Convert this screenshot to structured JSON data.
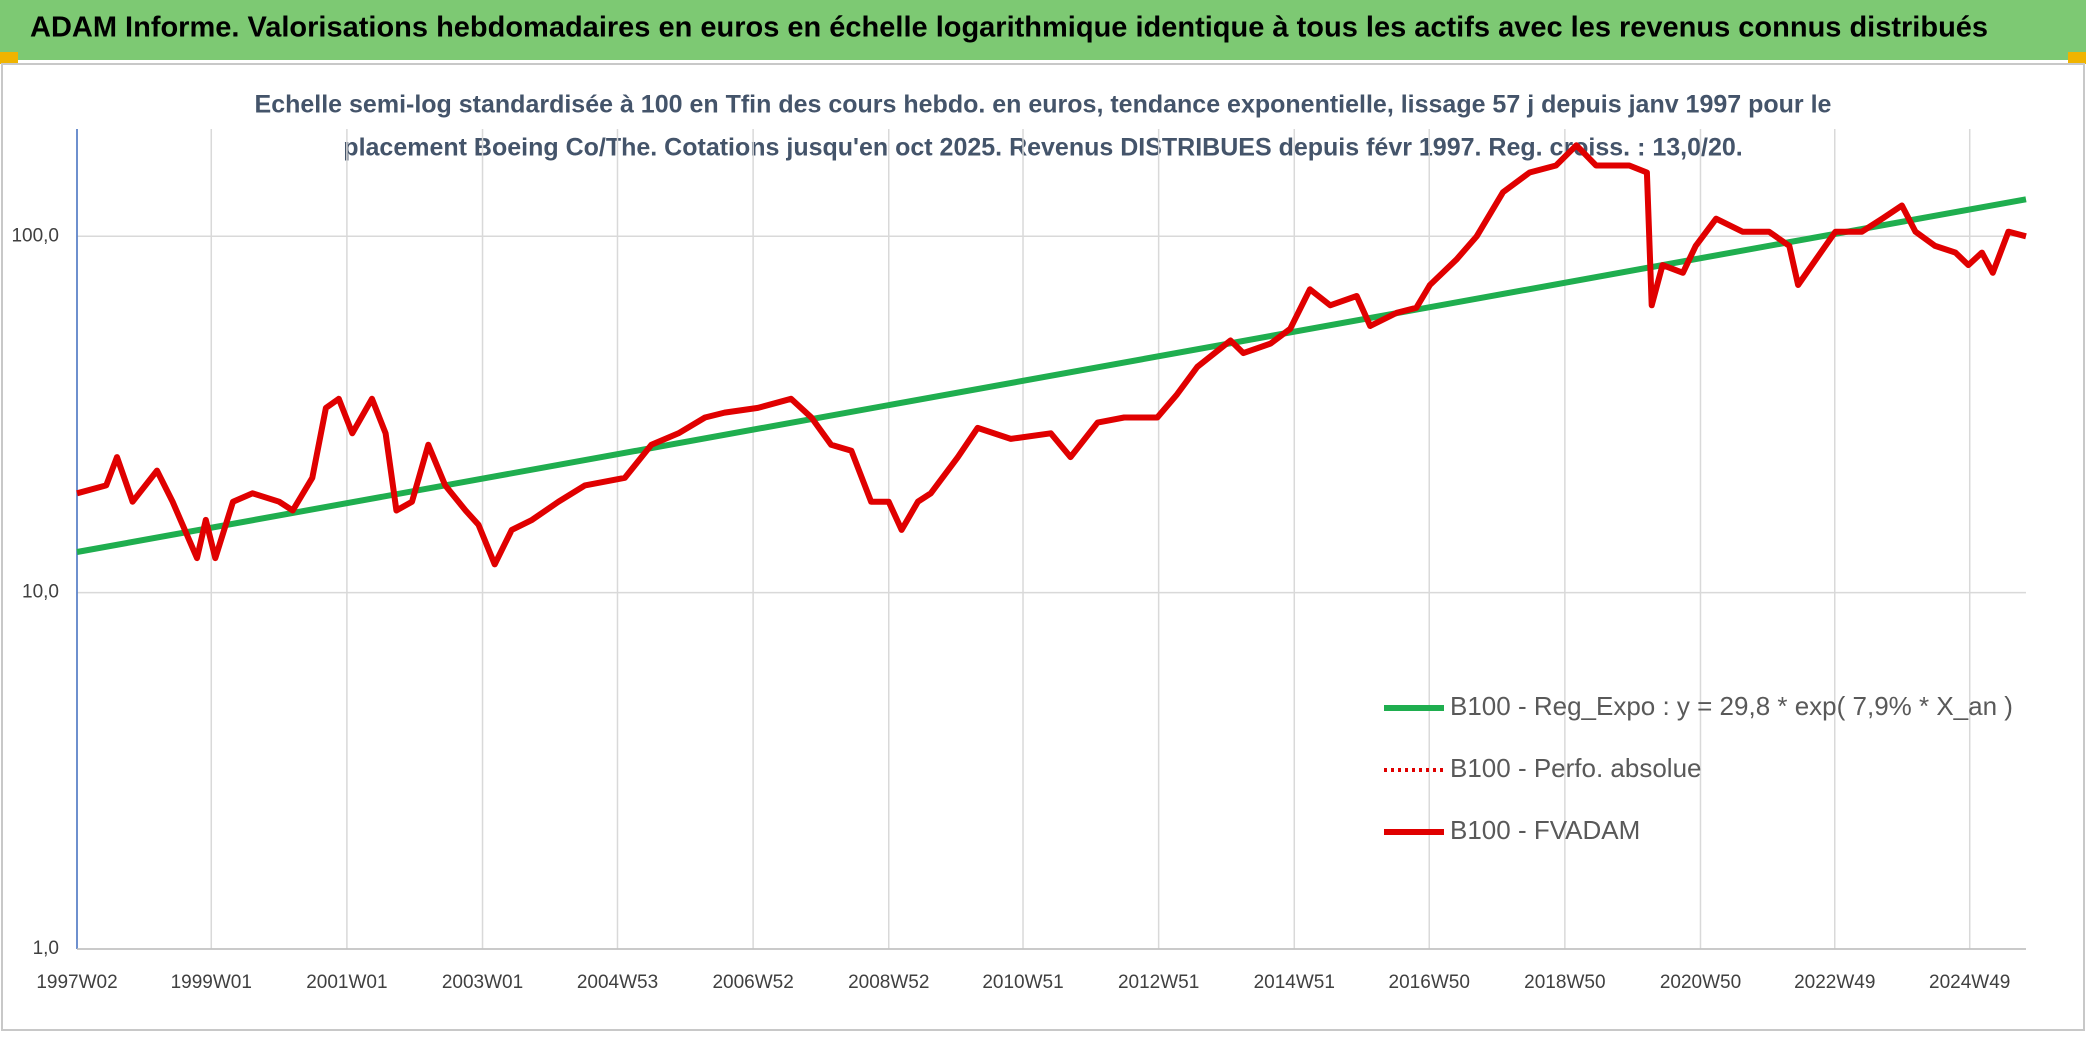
{
  "header": {
    "title": "ADAM Informe. Valorisations hebdomadaires en euros en échelle logarithmique identique à tous les actifs avec les revenus connus distribués"
  },
  "chart_data": {
    "type": "line",
    "subtitle": [
      "Echelle semi-log standardisée à 100 en Tfin des cours hebdo. en euros, tendance exponentielle, lissage 57 j depuis janv 1997 pour le",
      "placement Boeing Co/The. Cotations jusqu'en oct 2025. Revenus DISTRIBUES depuis févr 1997. Reg. croiss. : 13,0/20."
    ],
    "log_y": true,
    "grid": true,
    "legend": "bottom-right",
    "xlim": [
      1997.02,
      2025.76
    ],
    "ylim": [
      1,
      200
    ],
    "yticks": [
      {
        "value": 1,
        "label": "1,0"
      },
      {
        "value": 10,
        "label": "10,0"
      },
      {
        "value": 100,
        "label": "100,0"
      }
    ],
    "xticks": [
      {
        "value": 1997.02,
        "label": "1997W02"
      },
      {
        "value": 1999.0,
        "label": "1999W01"
      },
      {
        "value": 2001.0,
        "label": "2001W01"
      },
      {
        "value": 2003.0,
        "label": "2003W01"
      },
      {
        "value": 2004.99,
        "label": "2004W53"
      },
      {
        "value": 2006.99,
        "label": "2006W52"
      },
      {
        "value": 2008.99,
        "label": "2008W52"
      },
      {
        "value": 2010.97,
        "label": "2010W51"
      },
      {
        "value": 2012.97,
        "label": "2012W51"
      },
      {
        "value": 2014.97,
        "label": "2014W51"
      },
      {
        "value": 2016.96,
        "label": "2016W50"
      },
      {
        "value": 2018.96,
        "label": "2018W50"
      },
      {
        "value": 2020.96,
        "label": "2020W50"
      },
      {
        "value": 2022.94,
        "label": "2022W49"
      },
      {
        "value": 2024.93,
        "label": "2024W49"
      }
    ],
    "series": [
      {
        "name": "B100 - Reg_Expo : y = 29,8 * exp( 7,9% *  X_an )",
        "color": "#1fae4f",
        "dash": "solid",
        "x": [
          1997.02,
          2025.76
        ],
        "values": [
          13,
          127
        ]
      },
      {
        "name": "B100 - Perfo. absolue",
        "color": "#e00000",
        "dash": "dotted"
      },
      {
        "name": "B100 - FVADAM",
        "color": "#e00000",
        "dash": "solid",
        "x": [
          1997.02,
          1997.45,
          1997.61,
          1997.84,
          1998.2,
          1998.43,
          1998.79,
          1998.92,
          1999.06,
          1999.32,
          1999.61,
          2000.0,
          2000.2,
          2000.49,
          2000.69,
          2000.88,
          2001.08,
          2001.37,
          2001.57,
          2001.73,
          2001.96,
          2002.2,
          2002.45,
          2002.75,
          2002.94,
          2003.18,
          2003.43,
          2003.73,
          2004.12,
          2004.51,
          2005.1,
          2005.49,
          2005.89,
          2006.28,
          2006.57,
          2007.06,
          2007.55,
          2007.85,
          2008.14,
          2008.44,
          2008.73,
          2008.99,
          2009.18,
          2009.42,
          2009.61,
          2010.01,
          2010.3,
          2010.79,
          2011.38,
          2011.67,
          2012.07,
          2012.46,
          2012.95,
          2013.24,
          2013.54,
          2014.03,
          2014.22,
          2014.62,
          2014.91,
          2015.2,
          2015.5,
          2015.89,
          2016.09,
          2016.48,
          2016.77,
          2016.97,
          2017.36,
          2017.66,
          2018.05,
          2018.44,
          2018.83,
          2019.13,
          2019.42,
          2019.91,
          2020.17,
          2020.24,
          2020.4,
          2020.7,
          2020.89,
          2021.19,
          2021.58,
          2021.97,
          2022.27,
          2022.4,
          2022.66,
          2022.95,
          2023.34,
          2023.64,
          2023.93,
          2024.13,
          2024.42,
          2024.72,
          2024.91,
          2025.11,
          2025.27,
          2025.5,
          2025.76
        ],
        "values": [
          19,
          20,
          24,
          18,
          22,
          18,
          12.5,
          16,
          12.5,
          18,
          19,
          18,
          17,
          21,
          33,
          35,
          28,
          35,
          28,
          17,
          18,
          26,
          20,
          17,
          15.5,
          12,
          15,
          16,
          18,
          20,
          21,
          26,
          28,
          31,
          32,
          33,
          35,
          31,
          26,
          25,
          18,
          18,
          15,
          18,
          19,
          24,
          29,
          27,
          28,
          24,
          30,
          31,
          31,
          36,
          43,
          51,
          47,
          50,
          55,
          71,
          64,
          68,
          56,
          61,
          63,
          73,
          86,
          100,
          133,
          151,
          158,
          180,
          158,
          158,
          151,
          64,
          83,
          79,
          94,
          112,
          103,
          103,
          94,
          73,
          86,
          103,
          103,
          112,
          122,
          103,
          94,
          90,
          83,
          90,
          79,
          103,
          100
        ]
      }
    ]
  }
}
